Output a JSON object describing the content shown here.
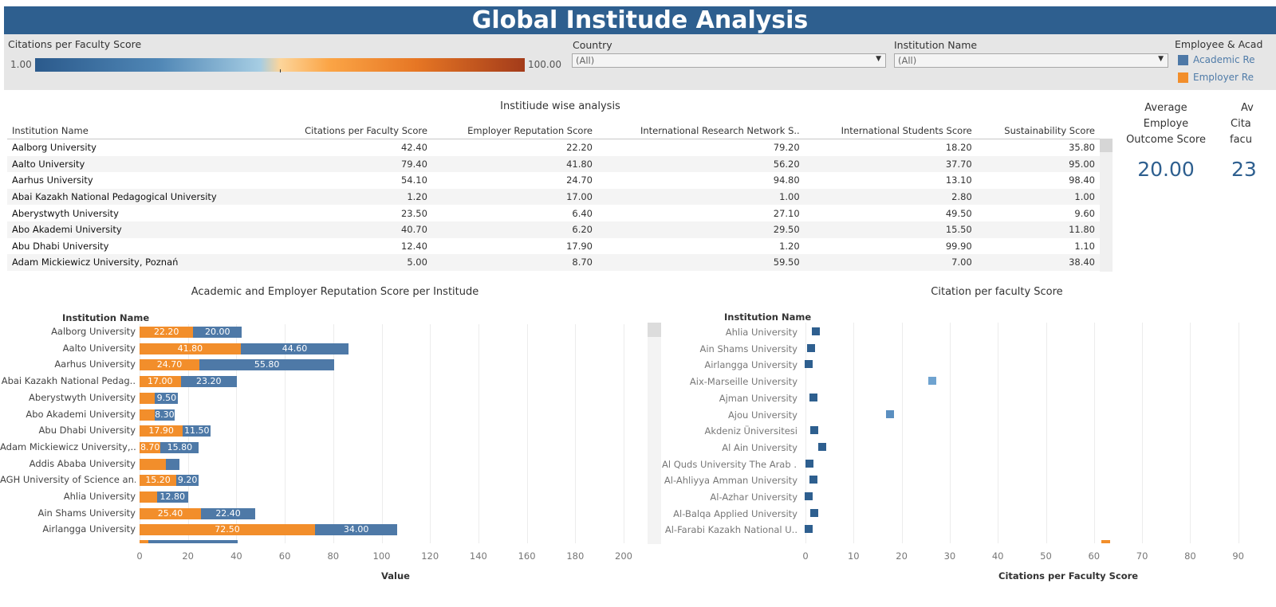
{
  "header": {
    "title": "Global Institude Analysis"
  },
  "filters": {
    "citations": {
      "label": "Citations per Faculty Score",
      "min": "1.00",
      "max": "100.00"
    },
    "country": {
      "label": "Country",
      "value": "(All)"
    },
    "institution": {
      "label": "Institution Name",
      "value": "(All)"
    },
    "legend": {
      "label": "Employee & Acad",
      "items": [
        {
          "label": "Academic Re",
          "color": "#4e79a7"
        },
        {
          "label": "Employer Re",
          "color": "#f28e2b"
        }
      ]
    }
  },
  "table": {
    "title": "Institiude wise analysis",
    "columns": [
      "Institution Name",
      "Citations per Faculty Score",
      "Employer Reputation Score",
      "International Research Network S..",
      "International Students Score",
      "Sustainability Score"
    ],
    "rows": [
      [
        "Aalborg University",
        "42.40",
        "22.20",
        "79.20",
        "18.20",
        "35.80"
      ],
      [
        "Aalto University",
        "79.40",
        "41.80",
        "56.20",
        "37.70",
        "95.00"
      ],
      [
        "Aarhus University",
        "54.10",
        "24.70",
        "94.80",
        "13.10",
        "98.40"
      ],
      [
        "Abai Kazakh National Pedagogical University",
        "1.20",
        "17.00",
        "1.00",
        "2.80",
        "1.00"
      ],
      [
        "Aberystwyth University",
        "23.50",
        "6.40",
        "27.10",
        "49.50",
        "9.60"
      ],
      [
        "Abo Akademi University",
        "40.70",
        "6.20",
        "29.50",
        "15.50",
        "11.80"
      ],
      [
        "Abu Dhabi University",
        "12.40",
        "17.90",
        "1.20",
        "99.90",
        "1.10"
      ],
      [
        "Adam Mickiewicz University, Poznań",
        "5.00",
        "8.70",
        "59.50",
        "7.00",
        "38.40"
      ]
    ]
  },
  "kpis": [
    {
      "label_lines": [
        "Average",
        "Employe",
        "Outcome Score"
      ],
      "value": "20.00"
    },
    {
      "label_lines": [
        "Av",
        "Cita",
        "facu"
      ],
      "value": "23"
    }
  ],
  "chart_data": [
    {
      "type": "bar",
      "title": "Academic and Employer Reputation Score per Institude",
      "category_header": "Institution Name",
      "xlabel": "Value",
      "xlim": [
        0,
        200
      ],
      "ticks": [
        "0",
        "20",
        "40",
        "60",
        "80",
        "100",
        "120",
        "140",
        "160",
        "180",
        "200"
      ],
      "stacked": true,
      "categories": [
        "Aalborg University",
        "Aalto University",
        "Aarhus University",
        "Abai Kazakh National Pedag..",
        "Aberystwyth University",
        "Abo Akademi University",
        "Abu Dhabi University",
        "Adam Mickiewicz University,..",
        "Addis Ababa University",
        "AGH University of Science an..",
        "Ahlia University",
        "Ain Shams University",
        "Airlangga University"
      ],
      "series": [
        {
          "name": "Employer Re",
          "color": "#f28e2b",
          "values": [
            22.2,
            41.8,
            24.7,
            17.0,
            6.4,
            6.2,
            17.9,
            8.7,
            11.0,
            15.2,
            7.2,
            25.4,
            72.5
          ],
          "labels": [
            "22.20",
            "41.80",
            "24.70",
            "17.00",
            "",
            "",
            "17.90",
            "8.70",
            "",
            "15.20",
            "",
            "25.40",
            "72.50"
          ]
        },
        {
          "name": "Academic Re",
          "color": "#4e79a7",
          "values": [
            20.0,
            44.6,
            55.8,
            23.2,
            9.5,
            8.3,
            11.5,
            15.8,
            5.5,
            9.2,
            12.8,
            22.4,
            34.0
          ],
          "labels": [
            "20.00",
            "44.60",
            "55.80",
            "23.20",
            "9.50",
            "8.30",
            "11.50",
            "15.80",
            "",
            "9.20",
            "12.80",
            "22.40",
            "34.00"
          ]
        }
      ]
    },
    {
      "type": "scatter",
      "title": "Citation per faculty Score",
      "category_header": "Institution Name",
      "xlabel": "Citations per Faculty Score",
      "xlim": [
        0,
        90
      ],
      "ticks": [
        "0",
        "10",
        "20",
        "30",
        "40",
        "50",
        "60",
        "70",
        "80",
        "90"
      ],
      "categories": [
        "Ahlia University",
        "Ain Shams University",
        "Airlangga University",
        "Aix-Marseille University",
        "Ajman University",
        "Ajou University",
        "Akdeniz Üniversitesi",
        "Al Ain University",
        "Al Quds University The Arab ..",
        "Al-Ahliyya Amman University",
        "Al-Azhar University",
        "Al-Balqa Applied University",
        "Al-Farabi Kazakh National U.."
      ],
      "values": [
        2.1,
        1.2,
        0.7,
        26.3,
        1.6,
        17.5,
        1.9,
        3.4,
        0.9,
        1.6,
        0.6,
        1.8,
        0.6
      ],
      "colors": [
        "#2e5f8f",
        "#2e5f8f",
        "#2e5f8f",
        "#6fa3d0",
        "#2e5f8f",
        "#5b8fc0",
        "#2e5f8f",
        "#2e5f8f",
        "#2e5f8f",
        "#2e5f8f",
        "#2e5f8f",
        "#2e5f8f",
        "#2e5f8f"
      ]
    }
  ]
}
